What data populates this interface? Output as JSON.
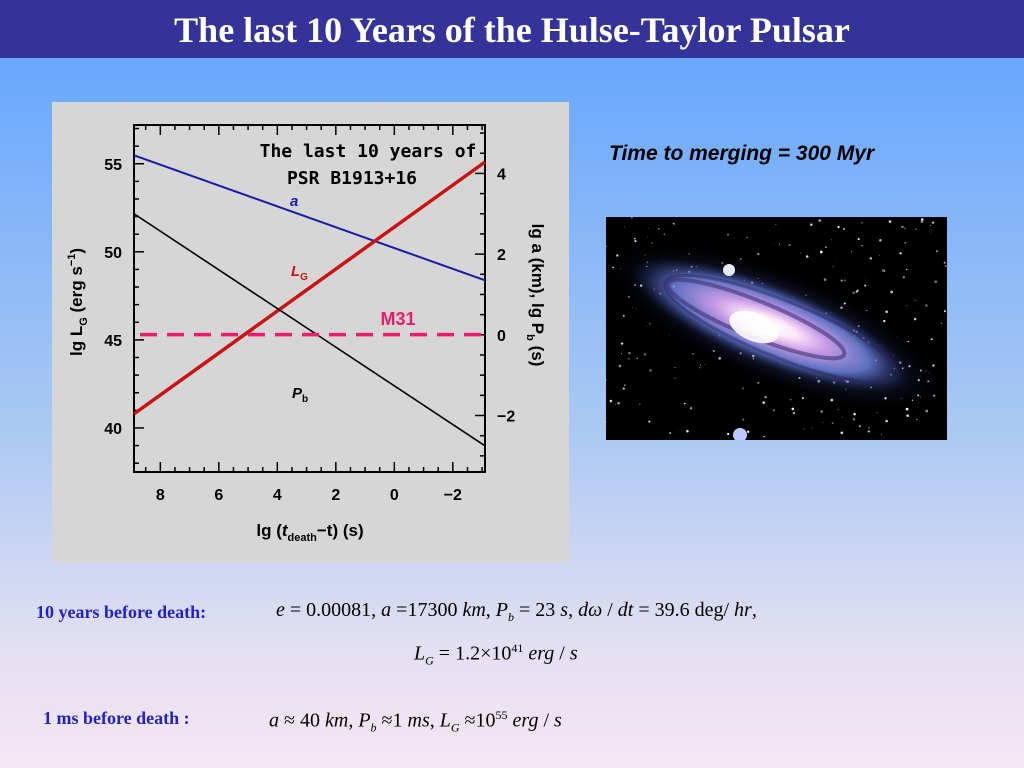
{
  "slide": {
    "title": "The last 10 Years of the Hulse-Taylor Pulsar",
    "merge_text": "Time to merging = 300 Myr",
    "galaxy_label": "Andromeda galaxy photo"
  },
  "colors": {
    "title_bar": "#333399",
    "a_line": "#1a1aaa",
    "lg_line": "#cc1111",
    "pb_line": "#000000",
    "m31_line": "#ee1a6a",
    "label_blue": "#2222cc"
  },
  "chart_data": {
    "type": "line",
    "title_line1": "The last 10 years of",
    "title_line2": "PSR B1913+16",
    "xlabel_prefix": "lg (",
    "xlabel_t": "t",
    "xlabel_sub": "death",
    "xlabel_suffix": "−t) (s)",
    "ylabel_left": "lg L",
    "ylabel_left_sub": "G",
    "ylabel_left_units": " (erg s",
    "ylabel_left_sup": "−1",
    "ylabel_left_close": ")",
    "ylabel_right": "lg a (km),   lg P",
    "ylabel_right_sub": "b",
    "ylabel_right_units": " (s)",
    "xlim": [
      8.9,
      -3.1
    ],
    "ylim_left": [
      37.5,
      57.2
    ],
    "ylim_right": [
      -3.4,
      5.2
    ],
    "x_ticks": [
      8,
      6,
      4,
      2,
      0,
      -2
    ],
    "x_tick_labels": [
      "8",
      "6",
      "4",
      "2",
      "0",
      "−2"
    ],
    "y_left_ticks": [
      40,
      45,
      50,
      55
    ],
    "y_left_tick_labels": [
      "40",
      "45",
      "50",
      "55"
    ],
    "y_right_ticks": [
      -2,
      0,
      2,
      4
    ],
    "y_right_tick_labels": [
      "−2",
      "0",
      "2",
      "4"
    ],
    "series": [
      {
        "name": "a",
        "axis": "right",
        "x": [
          8.9,
          -3.1
        ],
        "y": [
          4.45,
          1.35
        ]
      },
      {
        "name": "L",
        "name_sub": "G",
        "axis": "left",
        "x": [
          8.9,
          -3.1
        ],
        "y": [
          40.8,
          55.1
        ]
      },
      {
        "name": "P",
        "name_sub": "b",
        "axis": "right",
        "x": [
          8.9,
          -3.1
        ],
        "y": [
          3.0,
          -2.75
        ]
      }
    ],
    "reference": {
      "name": "M31",
      "axis": "left",
      "y": 45.3
    }
  },
  "equations": {
    "row1_label": "10 years before death:",
    "row1_eq": [
      {
        "t": "e",
        "i": true
      },
      {
        "t": " = 0.00081,   "
      },
      {
        "t": "a",
        "i": true
      },
      {
        "t": " =17300   "
      },
      {
        "t": "km",
        "i": true
      },
      {
        "t": ",   "
      },
      {
        "t": "P",
        "i": true
      },
      {
        "t": "b",
        "sub": true
      },
      {
        "t": " = 23  "
      },
      {
        "t": "s",
        "i": true
      },
      {
        "t": ",   "
      },
      {
        "t": "d",
        "i": true
      },
      {
        "t": "ω",
        "i": true
      },
      {
        "t": " / "
      },
      {
        "t": "dt",
        "i": true
      },
      {
        "t": " = 39.6  deg/ "
      },
      {
        "t": "hr",
        "i": true
      },
      {
        "t": ","
      }
    ],
    "row2_eq": [
      {
        "t": "L",
        "i": true
      },
      {
        "t": "G",
        "sub": true
      },
      {
        "t": " = 1.2×10"
      },
      {
        "t": "41",
        "sup": true
      },
      {
        "t": "  "
      },
      {
        "t": "erg",
        "i": true
      },
      {
        "t": " / "
      },
      {
        "t": "s",
        "i": true
      }
    ],
    "row3_label": "1 ms before death :",
    "row3_eq": [
      {
        "t": "a",
        "i": true
      },
      {
        "t": " ≈ 40   "
      },
      {
        "t": "km",
        "i": true
      },
      {
        "t": ",   "
      },
      {
        "t": "P",
        "i": true
      },
      {
        "t": "b",
        "sub": true
      },
      {
        "t": " ≈1  "
      },
      {
        "t": "ms",
        "i": true
      },
      {
        "t": ",   "
      },
      {
        "t": "L",
        "i": true
      },
      {
        "t": "G",
        "sub": true
      },
      {
        "t": " ≈10"
      },
      {
        "t": "55",
        "sup": true
      },
      {
        "t": "  "
      },
      {
        "t": "erg",
        "i": true
      },
      {
        "t": " / "
      },
      {
        "t": "s",
        "i": true
      }
    ]
  }
}
